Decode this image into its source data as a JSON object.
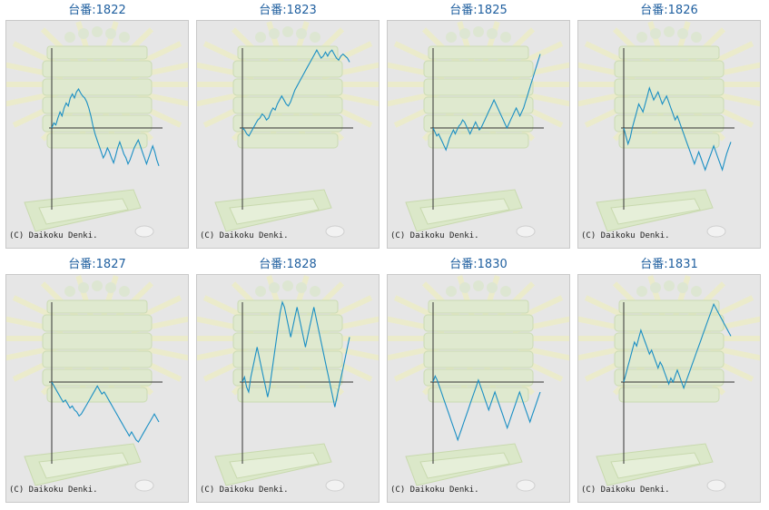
{
  "copyright": "(C) Daikoku Denki.",
  "graph_color": "#1a8fc4",
  "machines": [
    {
      "label": "台番:1822",
      "series": [
        0.0,
        0.5,
        0.3,
        1.0,
        1.6,
        1.2,
        2.0,
        2.5,
        2.2,
        3.0,
        3.4,
        3.0,
        3.6,
        3.9,
        3.5,
        3.2,
        3.0,
        2.6,
        2.0,
        1.2,
        0.2,
        -0.6,
        -1.2,
        -1.8,
        -2.4,
        -3.0,
        -2.6,
        -2.0,
        -2.4,
        -3.0,
        -3.5,
        -2.8,
        -2.0,
        -1.4,
        -2.0,
        -2.6,
        -3.0,
        -3.6,
        -3.2,
        -2.6,
        -2.0,
        -1.6,
        -1.2,
        -1.8,
        -2.4,
        -3.0,
        -3.6,
        -3.0,
        -2.4,
        -1.8,
        -2.4,
        -3.2,
        -3.8
      ]
    },
    {
      "label": "台番:1823",
      "series": [
        0.0,
        -0.2,
        -0.6,
        -0.8,
        -0.4,
        0.0,
        0.4,
        0.8,
        1.0,
        1.4,
        1.2,
        0.8,
        1.0,
        1.6,
        2.0,
        1.8,
        2.4,
        2.8,
        3.2,
        2.8,
        2.4,
        2.2,
        2.6,
        3.2,
        3.8,
        4.2,
        4.6,
        5.0,
        5.4,
        5.8,
        6.2,
        6.6,
        7.0,
        7.4,
        7.8,
        7.4,
        7.0,
        7.2,
        7.6,
        7.2,
        7.6,
        7.8,
        7.4,
        7.0,
        6.8,
        7.2,
        7.4,
        7.2,
        7.0,
        6.6
      ]
    },
    {
      "label": "台番:1825",
      "series": [
        0.0,
        -0.4,
        -0.8,
        -0.6,
        -1.0,
        -1.4,
        -1.8,
        -2.2,
        -1.6,
        -1.0,
        -0.6,
        -0.2,
        -0.6,
        -0.2,
        0.2,
        0.4,
        0.8,
        0.6,
        0.2,
        -0.2,
        -0.6,
        -0.2,
        0.2,
        0.6,
        0.2,
        -0.2,
        0.0,
        0.4,
        0.8,
        1.2,
        1.6,
        2.0,
        2.4,
        2.8,
        2.4,
        2.0,
        1.6,
        1.2,
        0.8,
        0.4,
        0.0,
        0.4,
        0.8,
        1.2,
        1.6,
        2.0,
        1.6,
        1.2,
        1.6,
        2.0,
        2.6,
        3.2,
        3.8,
        4.4,
        5.0,
        5.6,
        6.2,
        6.8,
        7.4
      ]
    },
    {
      "label": "台番:1826",
      "series": [
        0.0,
        -0.8,
        -1.6,
        -1.0,
        0.0,
        0.8,
        1.6,
        2.4,
        2.0,
        1.6,
        2.4,
        3.2,
        4.0,
        3.4,
        2.8,
        3.2,
        3.6,
        3.0,
        2.4,
        2.8,
        3.2,
        2.6,
        2.0,
        1.4,
        0.8,
        1.2,
        0.6,
        0.0,
        -0.6,
        -1.2,
        -1.8,
        -2.4,
        -3.0,
        -3.6,
        -3.0,
        -2.4,
        -3.0,
        -3.6,
        -4.2,
        -3.6,
        -3.0,
        -2.4,
        -1.8,
        -2.4,
        -3.0,
        -3.6,
        -4.2,
        -3.4,
        -2.6,
        -2.0,
        -1.4
      ]
    },
    {
      "label": "台番:1827",
      "series": [
        0.0,
        -0.4,
        -0.8,
        -1.2,
        -1.6,
        -2.0,
        -1.8,
        -2.2,
        -2.6,
        -2.4,
        -2.8,
        -3.0,
        -3.4,
        -3.2,
        -2.8,
        -2.4,
        -2.0,
        -1.6,
        -1.2,
        -0.8,
        -0.4,
        -0.8,
        -1.2,
        -1.0,
        -1.4,
        -1.8,
        -2.2,
        -2.6,
        -3.0,
        -3.4,
        -3.8,
        -4.2,
        -4.6,
        -5.0,
        -5.4,
        -5.0,
        -5.4,
        -5.8,
        -6.0,
        -5.6,
        -5.2,
        -4.8,
        -4.4,
        -4.0,
        -3.6,
        -3.2,
        -3.6,
        -4.0
      ]
    },
    {
      "label": "台番:1828",
      "series": [
        0.0,
        0.5,
        -0.5,
        -1.0,
        0.5,
        1.5,
        2.5,
        3.5,
        2.5,
        1.5,
        0.5,
        -0.5,
        -1.5,
        -0.5,
        1.0,
        2.5,
        4.0,
        5.5,
        7.0,
        8.5,
        7.5,
        6.5,
        5.5,
        4.5,
        5.5,
        6.5,
        7.5,
        6.5,
        5.5,
        4.5,
        3.5,
        4.5,
        5.5,
        6.5,
        7.5,
        6.5,
        5.5,
        4.5,
        3.5,
        2.5,
        1.5,
        0.5,
        -0.5,
        -1.5,
        -2.5,
        -1.5,
        -0.5,
        0.5,
        1.5,
        2.5,
        3.5,
        4.5
      ]
    },
    {
      "label": "台番:1830",
      "series": [
        0.0,
        0.6,
        0.2,
        -0.4,
        -1.0,
        -1.6,
        -2.2,
        -2.8,
        -3.4,
        -4.0,
        -4.6,
        -5.2,
        -5.8,
        -5.2,
        -4.6,
        -4.0,
        -3.4,
        -2.8,
        -2.2,
        -1.6,
        -1.0,
        -0.4,
        0.2,
        -0.4,
        -1.0,
        -1.6,
        -2.2,
        -2.8,
        -2.2,
        -1.6,
        -1.0,
        -1.6,
        -2.2,
        -2.8,
        -3.4,
        -4.0,
        -4.6,
        -4.0,
        -3.4,
        -2.8,
        -2.2,
        -1.6,
        -1.0,
        -1.6,
        -2.2,
        -2.8,
        -3.4,
        -4.0,
        -3.4,
        -2.8,
        -2.2,
        -1.6,
        -1.0
      ]
    },
    {
      "label": "台番:1831",
      "series": [
        0.0,
        0.8,
        1.6,
        2.4,
        3.2,
        4.0,
        3.6,
        4.4,
        5.2,
        4.6,
        4.0,
        3.4,
        2.8,
        3.2,
        2.6,
        2.0,
        1.4,
        2.0,
        1.6,
        1.0,
        0.4,
        -0.2,
        0.4,
        0.0,
        0.6,
        1.2,
        0.6,
        0.0,
        -0.6,
        0.0,
        0.6,
        1.2,
        1.8,
        2.4,
        3.0,
        3.6,
        4.2,
        4.8,
        5.4,
        6.0,
        6.6,
        7.2,
        7.8,
        7.4,
        7.0,
        6.6,
        6.2,
        5.8,
        5.4,
        5.0,
        4.6
      ]
    }
  ]
}
